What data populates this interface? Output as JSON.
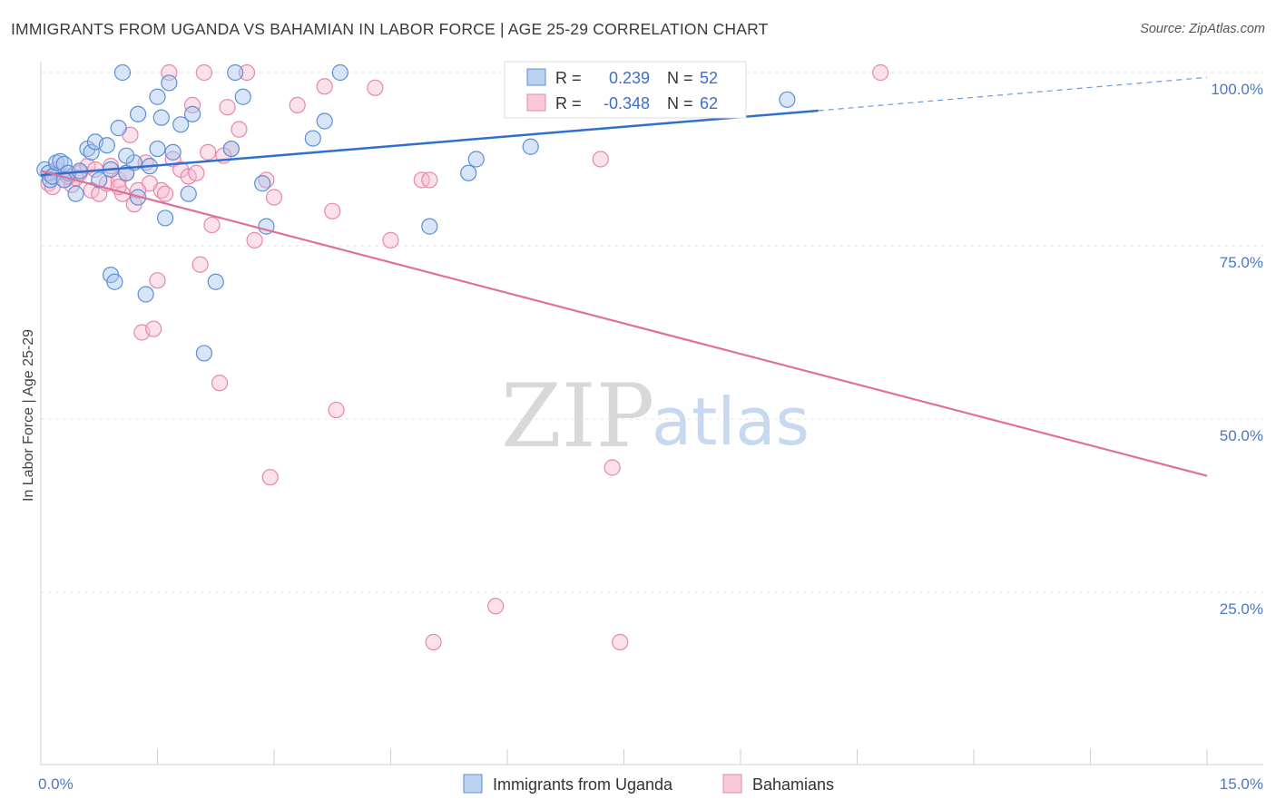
{
  "title": "IMMIGRANTS FROM UGANDA VS BAHAMIAN IN LABOR FORCE | AGE 25-29 CORRELATION CHART",
  "source": "Source: ZipAtlas.com",
  "watermark": {
    "zip": "ZIP",
    "atlas": "atlas"
  },
  "colors": {
    "blue_fill": "#a9c6ee",
    "blue_stroke": "#5b8fd6",
    "blue_line": "#2f6fd0",
    "pink_fill": "#f6bcd0",
    "pink_stroke": "#e588aa",
    "pink_line": "#e0709a",
    "grid": "#e3e3e3",
    "tick_text": "#4a78c8"
  },
  "chart_data": {
    "type": "scatter",
    "xlabel": "",
    "ylabel": "In Labor Force | Age 25-29",
    "xlim": [
      0,
      15
    ],
    "ylim": [
      0,
      104
    ],
    "x_tick_labels": [
      {
        "value": 0,
        "label": "0.0%"
      },
      {
        "value": 15,
        "label": "15.0%"
      }
    ],
    "y_tick_labels": [
      {
        "value": 100,
        "label": "100.0%"
      },
      {
        "value": 75,
        "label": "75.0%"
      },
      {
        "value": 50,
        "label": "50.0%"
      },
      {
        "value": 25,
        "label": "25.0%"
      }
    ],
    "legend_top": [
      {
        "r_label": "R =",
        "r_value": "0.239",
        "n_label": "N =",
        "n_value": "52"
      },
      {
        "r_label": "R =",
        "r_value": "-0.348",
        "n_label": "N =",
        "n_value": "62"
      }
    ],
    "series": [
      {
        "name": "Immigrants from Uganda",
        "color": "blue",
        "trend": {
          "x0": 0,
          "y0": 85.2,
          "x1": 10.0,
          "y1": 94.5,
          "dash_x1": 15.0,
          "dash_y1": 99.3
        },
        "points": [
          [
            0.05,
            86
          ],
          [
            0.1,
            85.5
          ],
          [
            0.12,
            84.5
          ],
          [
            0.15,
            85
          ],
          [
            0.2,
            87
          ],
          [
            0.25,
            87.2
          ],
          [
            0.3,
            86.8
          ],
          [
            0.35,
            85.5
          ],
          [
            0.45,
            82.5
          ],
          [
            0.6,
            89
          ],
          [
            0.65,
            88.5
          ],
          [
            0.7,
            90
          ],
          [
            0.85,
            89.5
          ],
          [
            0.9,
            86
          ],
          [
            1.1,
            85.5
          ],
          [
            1.0,
            92
          ],
          [
            1.2,
            87
          ],
          [
            1.25,
            82
          ],
          [
            1.35,
            68
          ],
          [
            1.4,
            86.5
          ],
          [
            1.5,
            89
          ],
          [
            1.5,
            96.5
          ],
          [
            1.55,
            93.5
          ],
          [
            1.6,
            79
          ],
          [
            1.65,
            98.5
          ],
          [
            1.7,
            88.5
          ],
          [
            1.8,
            92.5
          ],
          [
            1.9,
            82.5
          ],
          [
            1.95,
            94
          ],
          [
            2.1,
            59.5
          ],
          [
            2.25,
            69.8
          ],
          [
            2.45,
            89
          ],
          [
            2.5,
            100
          ],
          [
            2.6,
            96.5
          ],
          [
            2.85,
            84
          ],
          [
            2.9,
            77.8
          ],
          [
            3.5,
            90.5
          ],
          [
            3.65,
            93
          ],
          [
            3.85,
            100
          ],
          [
            5.0,
            77.8
          ],
          [
            5.5,
            85.5
          ],
          [
            5.6,
            87.5
          ],
          [
            6.3,
            89.3
          ],
          [
            9.6,
            96.1
          ],
          [
            1.05,
            100
          ],
          [
            0.9,
            70.8
          ],
          [
            0.95,
            69.8
          ],
          [
            0.75,
            84.5
          ],
          [
            0.3,
            84.5
          ],
          [
            1.25,
            94
          ],
          [
            1.1,
            88
          ],
          [
            0.5,
            85.8
          ]
        ]
      },
      {
        "name": "Bahamians",
        "color": "pink",
        "trend": {
          "x0": 0,
          "y0": 85.8,
          "x1": 15.0,
          "y1": 41.8
        },
        "points": [
          [
            0.1,
            84
          ],
          [
            0.15,
            83.5
          ],
          [
            0.2,
            86
          ],
          [
            0.3,
            84.5
          ],
          [
            0.4,
            83.8
          ],
          [
            0.5,
            85.5
          ],
          [
            0.6,
            86.5
          ],
          [
            0.65,
            83
          ],
          [
            0.75,
            82.5
          ],
          [
            0.85,
            84
          ],
          [
            0.9,
            86.5
          ],
          [
            1.0,
            84.5
          ],
          [
            1.05,
            82.5
          ],
          [
            1.1,
            85.5
          ],
          [
            1.15,
            91
          ],
          [
            1.2,
            81
          ],
          [
            1.3,
            62.5
          ],
          [
            1.35,
            87
          ],
          [
            1.4,
            84
          ],
          [
            1.45,
            63
          ],
          [
            1.5,
            70
          ],
          [
            1.55,
            83
          ],
          [
            1.6,
            82.5
          ],
          [
            1.65,
            100
          ],
          [
            1.7,
            87.5
          ],
          [
            1.8,
            86
          ],
          [
            1.9,
            85
          ],
          [
            1.95,
            95.3
          ],
          [
            2.0,
            85.5
          ],
          [
            2.05,
            72.3
          ],
          [
            2.1,
            100
          ],
          [
            2.15,
            88.5
          ],
          [
            2.2,
            78
          ],
          [
            2.3,
            55.2
          ],
          [
            2.4,
            95
          ],
          [
            2.45,
            89
          ],
          [
            2.55,
            91.8
          ],
          [
            2.65,
            100
          ],
          [
            2.75,
            75.8
          ],
          [
            2.9,
            84.5
          ],
          [
            2.95,
            41.6
          ],
          [
            3.0,
            82
          ],
          [
            3.3,
            95.3
          ],
          [
            3.65,
            98
          ],
          [
            3.75,
            80
          ],
          [
            3.8,
            51.3
          ],
          [
            4.3,
            97.8
          ],
          [
            4.5,
            75.8
          ],
          [
            4.9,
            84.5
          ],
          [
            5.0,
            84.5
          ],
          [
            5.05,
            17.8
          ],
          [
            5.85,
            23
          ],
          [
            7.2,
            87.5
          ],
          [
            7.35,
            43
          ],
          [
            7.45,
            17.8
          ],
          [
            10.8,
            100
          ],
          [
            0.7,
            86
          ],
          [
            1.25,
            83
          ],
          [
            2.35,
            88
          ],
          [
            0.45,
            84.8
          ],
          [
            1.0,
            83.5
          ],
          [
            0.35,
            85
          ]
        ]
      }
    ]
  }
}
